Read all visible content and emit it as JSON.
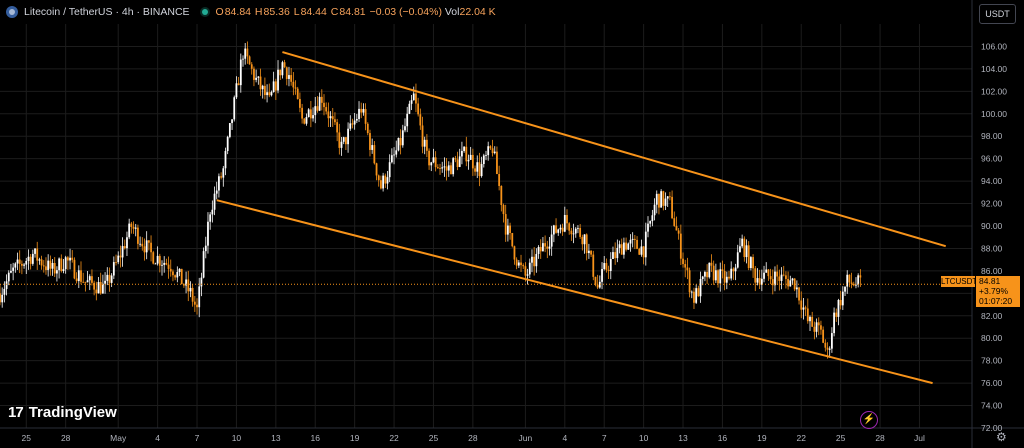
{
  "header": {
    "symbol": "Litecoin / TetherUS · 4h · BINANCE",
    "o_label": "O",
    "o": "84.84",
    "h_label": "H",
    "h": "85.36",
    "l_label": "L",
    "l": "84.44",
    "c_label": "C",
    "c": "84.81",
    "change": "−0.03 (−0.04%)",
    "vol_label": "Vol",
    "vol": "22.04 K"
  },
  "currency_button": "USDT",
  "brand": {
    "mark": "17",
    "name": "TradingView"
  },
  "last_price": {
    "symbol": "LTCUSDT",
    "price": "84.81",
    "pct": "+3.79%",
    "countdown": "01:07:20"
  },
  "colors": {
    "up": "#ffffff",
    "down": "#f7931a",
    "channel": "#f7931a",
    "grid": "#1c1c1c",
    "axis_text": "#b2b5be"
  },
  "chart_data": {
    "type": "candlestick",
    "interval": "4h",
    "ylim": [
      72,
      108
    ],
    "yticks": [
      72,
      74,
      76,
      78,
      80,
      82,
      84,
      86,
      88,
      90,
      92,
      94,
      96,
      98,
      100,
      102,
      104,
      106
    ],
    "ytick_labels": [
      "72.00",
      "74.00",
      "76.00",
      "78.00",
      "80.00",
      "82.00",
      "84.00",
      "86.00",
      "88.00",
      "90.00",
      "92.00",
      "94.00",
      "96.00",
      "98.00",
      "100.00",
      "102.00",
      "104.00",
      "106.00"
    ],
    "xticks": [
      {
        "label": "25",
        "day": -6
      },
      {
        "label": "28",
        "day": -3
      },
      {
        "label": "May",
        "day": 1
      },
      {
        "label": "4",
        "day": 4
      },
      {
        "label": "7",
        "day": 7
      },
      {
        "label": "10",
        "day": 10
      },
      {
        "label": "13",
        "day": 13
      },
      {
        "label": "16",
        "day": 16
      },
      {
        "label": "19",
        "day": 19
      },
      {
        "label": "22",
        "day": 22
      },
      {
        "label": "25",
        "day": 25
      },
      {
        "label": "28",
        "day": 28
      },
      {
        "label": "Jun",
        "day": 32
      },
      {
        "label": "4",
        "day": 35
      },
      {
        "label": "7",
        "day": 38
      },
      {
        "label": "10",
        "day": 41
      },
      {
        "label": "13",
        "day": 44
      },
      {
        "label": "16",
        "day": 47
      },
      {
        "label": "19",
        "day": 50
      },
      {
        "label": "22",
        "day": 53
      },
      {
        "label": "25",
        "day": 56
      },
      {
        "label": "28",
        "day": 59
      },
      {
        "label": "Jul",
        "day": 62
      }
    ],
    "xlim_days": [
      -8,
      66
    ],
    "path": [
      {
        "day": -8.0,
        "price": 84.0
      },
      {
        "day": -7.0,
        "price": 86.0
      },
      {
        "day": -5.5,
        "price": 87.5
      },
      {
        "day": -4.0,
        "price": 86.0
      },
      {
        "day": -3.0,
        "price": 87.0
      },
      {
        "day": -1.5,
        "price": 85.0
      },
      {
        "day": 0.0,
        "price": 84.5
      },
      {
        "day": 1.0,
        "price": 87.0
      },
      {
        "day": 2.0,
        "price": 90.0
      },
      {
        "day": 3.5,
        "price": 87.5
      },
      {
        "day": 5.0,
        "price": 86.5
      },
      {
        "day": 6.5,
        "price": 84.0
      },
      {
        "day": 7.0,
        "price": 82.5
      },
      {
        "day": 8.0,
        "price": 91.5
      },
      {
        "day": 9.0,
        "price": 95.0
      },
      {
        "day": 10.0,
        "price": 102.0
      },
      {
        "day": 10.5,
        "price": 105.5
      },
      {
        "day": 11.5,
        "price": 103.0
      },
      {
        "day": 12.5,
        "price": 101.0
      },
      {
        "day": 13.5,
        "price": 104.5
      },
      {
        "day": 14.0,
        "price": 103.5
      },
      {
        "day": 15.0,
        "price": 99.5
      },
      {
        "day": 16.5,
        "price": 101.5
      },
      {
        "day": 18.0,
        "price": 97.0
      },
      {
        "day": 19.5,
        "price": 100.5
      },
      {
        "day": 21.0,
        "price": 93.5
      },
      {
        "day": 22.5,
        "price": 97.5
      },
      {
        "day": 23.5,
        "price": 101.5
      },
      {
        "day": 24.5,
        "price": 96.0
      },
      {
        "day": 26.0,
        "price": 95.0
      },
      {
        "day": 27.5,
        "price": 96.5
      },
      {
        "day": 28.5,
        "price": 95.0
      },
      {
        "day": 29.5,
        "price": 97.0
      },
      {
        "day": 30.5,
        "price": 90.0
      },
      {
        "day": 31.5,
        "price": 86.5
      },
      {
        "day": 32.0,
        "price": 85.5
      },
      {
        "day": 33.5,
        "price": 88.5
      },
      {
        "day": 35.0,
        "price": 90.5
      },
      {
        "day": 36.5,
        "price": 89.0
      },
      {
        "day": 37.5,
        "price": 84.5
      },
      {
        "day": 38.0,
        "price": 86.0
      },
      {
        "day": 39.5,
        "price": 88.5
      },
      {
        "day": 41.0,
        "price": 88.0
      },
      {
        "day": 42.0,
        "price": 92.5
      },
      {
        "day": 43.0,
        "price": 92.0
      },
      {
        "day": 44.0,
        "price": 87.0
      },
      {
        "day": 44.8,
        "price": 83.5
      },
      {
        "day": 46.0,
        "price": 86.0
      },
      {
        "day": 47.5,
        "price": 85.0
      },
      {
        "day": 48.5,
        "price": 88.5
      },
      {
        "day": 49.5,
        "price": 85.5
      },
      {
        "day": 51.0,
        "price": 85.5
      },
      {
        "day": 52.5,
        "price": 85.0
      },
      {
        "day": 53.5,
        "price": 81.5
      },
      {
        "day": 54.5,
        "price": 80.5
      },
      {
        "day": 55.0,
        "price": 78.5
      },
      {
        "day": 55.5,
        "price": 82.0
      },
      {
        "day": 56.5,
        "price": 85.0
      },
      {
        "day": 57.5,
        "price": 84.8
      }
    ],
    "upper_channel": [
      {
        "day": 13.5,
        "price": 105.5
      },
      {
        "day": 64.0,
        "price": 88.2
      }
    ],
    "lower_channel": [
      {
        "day": 8.5,
        "price": 92.3
      },
      {
        "day": 63.0,
        "price": 76.0
      }
    ],
    "last_close": 84.81
  }
}
